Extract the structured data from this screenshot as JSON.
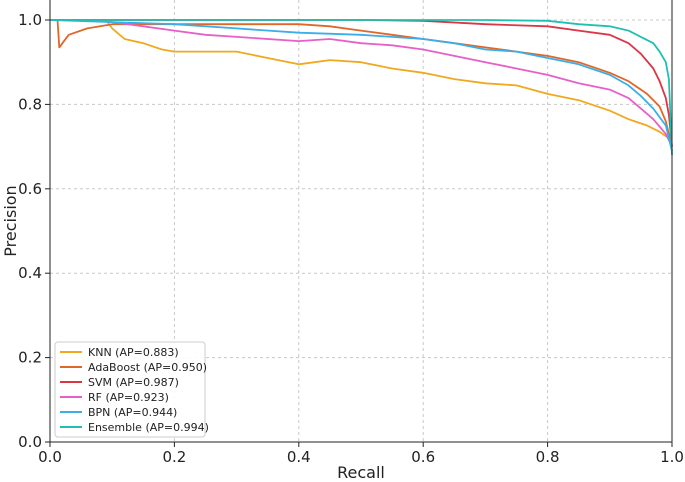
{
  "chart_data": {
    "type": "line",
    "title": "",
    "xlabel": "Recall",
    "ylabel": "Precision",
    "xlim": [
      0.0,
      1.0
    ],
    "ylim": [
      0.0,
      1.0
    ],
    "xticks": [
      "0.0",
      "0.2",
      "0.4",
      "0.6",
      "0.8",
      "1.0"
    ],
    "yticks": [
      "0.0",
      "0.2",
      "0.4",
      "0.6",
      "0.8",
      "1.0"
    ],
    "grid": true,
    "legend_position": "lower-left",
    "series": [
      {
        "name": "KNN (AP=0.883)",
        "color": "#f0a81e",
        "x": [
          0.0,
          0.09,
          0.1,
          0.12,
          0.15,
          0.18,
          0.2,
          0.25,
          0.3,
          0.35,
          0.4,
          0.45,
          0.5,
          0.55,
          0.6,
          0.65,
          0.7,
          0.75,
          0.8,
          0.85,
          0.9,
          0.93,
          0.96,
          0.98,
          0.995,
          1.0
        ],
        "y": [
          1.0,
          1.0,
          0.98,
          0.955,
          0.945,
          0.93,
          0.925,
          0.925,
          0.925,
          0.91,
          0.895,
          0.905,
          0.9,
          0.885,
          0.875,
          0.86,
          0.85,
          0.845,
          0.825,
          0.81,
          0.785,
          0.765,
          0.75,
          0.735,
          0.72,
          0.69
        ]
      },
      {
        "name": "AdaBoost (AP=0.950)",
        "color": "#e0672a",
        "x": [
          0.0,
          0.005,
          0.012,
          0.015,
          0.03,
          0.06,
          0.1,
          0.2,
          0.3,
          0.4,
          0.45,
          0.5,
          0.55,
          0.6,
          0.65,
          0.7,
          0.75,
          0.8,
          0.85,
          0.9,
          0.93,
          0.96,
          0.98,
          0.99,
          1.0
        ],
        "y": [
          1.0,
          1.0,
          1.0,
          0.935,
          0.965,
          0.98,
          0.99,
          0.99,
          0.99,
          0.99,
          0.985,
          0.975,
          0.965,
          0.955,
          0.945,
          0.935,
          0.925,
          0.915,
          0.9,
          0.875,
          0.855,
          0.825,
          0.795,
          0.76,
          0.7
        ]
      },
      {
        "name": "SVM (AP=0.987)",
        "color": "#dc3545",
        "x": [
          0.0,
          0.3,
          0.5,
          0.6,
          0.7,
          0.8,
          0.85,
          0.9,
          0.93,
          0.95,
          0.97,
          0.98,
          0.99,
          0.995,
          1.0
        ],
        "y": [
          1.0,
          1.0,
          1.0,
          0.998,
          0.99,
          0.985,
          0.975,
          0.965,
          0.945,
          0.92,
          0.885,
          0.855,
          0.815,
          0.775,
          0.7
        ]
      },
      {
        "name": "RF (AP=0.923)",
        "color": "#e660c8",
        "x": [
          0.0,
          0.05,
          0.1,
          0.15,
          0.2,
          0.25,
          0.3,
          0.4,
          0.45,
          0.5,
          0.55,
          0.6,
          0.65,
          0.7,
          0.75,
          0.8,
          0.85,
          0.9,
          0.93,
          0.95,
          0.97,
          0.99,
          1.0
        ],
        "y": [
          1.0,
          1.0,
          0.995,
          0.985,
          0.975,
          0.965,
          0.96,
          0.95,
          0.955,
          0.945,
          0.94,
          0.93,
          0.915,
          0.9,
          0.885,
          0.87,
          0.85,
          0.835,
          0.815,
          0.79,
          0.765,
          0.73,
          0.7
        ]
      },
      {
        "name": "BPN (AP=0.944)",
        "color": "#3aaee8",
        "x": [
          0.0,
          0.1,
          0.2,
          0.3,
          0.4,
          0.5,
          0.6,
          0.65,
          0.7,
          0.75,
          0.8,
          0.85,
          0.9,
          0.93,
          0.95,
          0.97,
          0.99,
          1.0
        ],
        "y": [
          1.0,
          0.995,
          0.99,
          0.98,
          0.97,
          0.965,
          0.955,
          0.945,
          0.93,
          0.925,
          0.91,
          0.895,
          0.87,
          0.845,
          0.82,
          0.79,
          0.75,
          0.69
        ]
      },
      {
        "name": "Ensemble (AP=0.994)",
        "color": "#20c0b0",
        "x": [
          0.0,
          0.5,
          0.7,
          0.8,
          0.85,
          0.9,
          0.93,
          0.95,
          0.97,
          0.98,
          0.99,
          0.995,
          1.0
        ],
        "y": [
          1.0,
          1.0,
          1.0,
          0.998,
          0.99,
          0.985,
          0.975,
          0.96,
          0.945,
          0.925,
          0.9,
          0.86,
          0.68
        ]
      }
    ]
  }
}
